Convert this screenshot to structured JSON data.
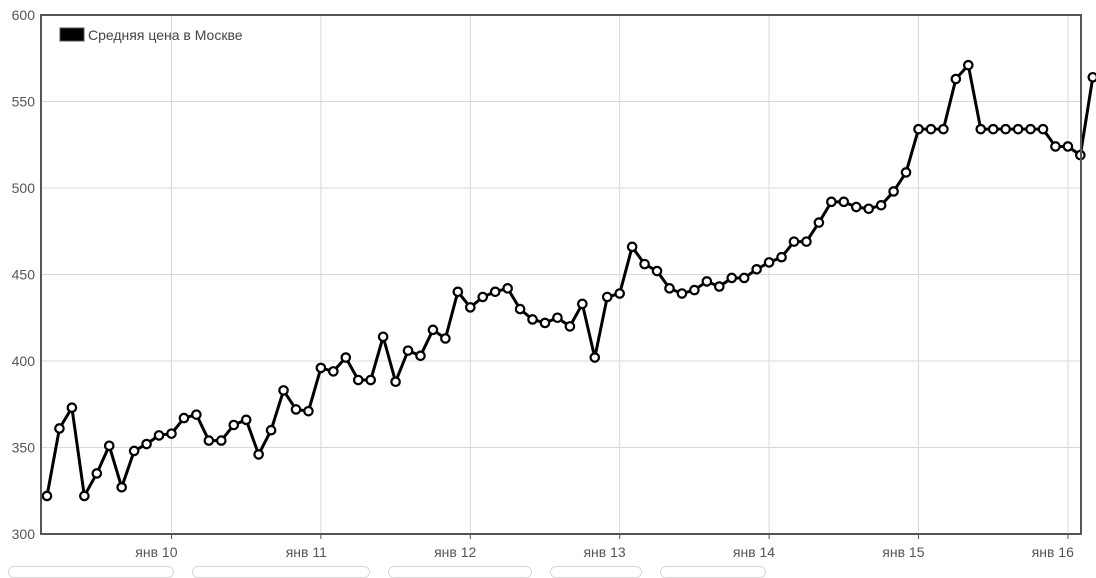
{
  "chart_data": {
    "type": "line",
    "title": "",
    "xlabel": "",
    "ylabel": "",
    "ylim": [
      300,
      600
    ],
    "yticks": [
      300,
      350,
      400,
      450,
      500,
      550,
      600
    ],
    "x_tick_labels": [
      "янв 10",
      "янв 11",
      "янв 12",
      "янв 13",
      "янв 14",
      "янв 15",
      "янв 16"
    ],
    "grid": true,
    "legend_placement": "top-left",
    "series": [
      {
        "name": "Средняя цена в Москве",
        "color": "#000000",
        "x_start": "2009-03",
        "values": [
          322,
          361,
          373,
          322,
          335,
          351,
          327,
          348,
          352,
          357,
          358,
          367,
          369,
          354,
          354,
          363,
          366,
          346,
          360,
          383,
          372,
          371,
          396,
          394,
          402,
          389,
          389,
          414,
          388,
          406,
          403,
          418,
          413,
          440,
          431,
          437,
          440,
          442,
          430,
          424,
          422,
          425,
          420,
          433,
          402,
          437,
          439,
          466,
          456,
          452,
          442,
          439,
          441,
          446,
          443,
          448,
          448,
          453,
          457,
          460,
          469,
          469,
          480,
          492,
          492,
          489,
          488,
          490,
          498,
          509,
          534,
          534,
          534,
          563,
          571,
          534,
          534,
          534,
          534,
          534,
          534,
          524,
          524,
          519,
          564
        ]
      }
    ]
  }
}
